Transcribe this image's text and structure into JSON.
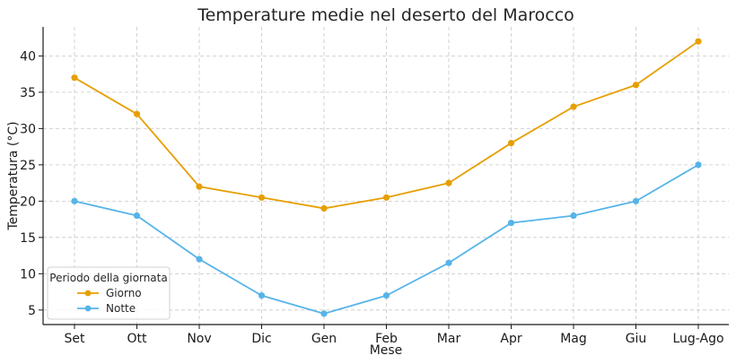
{
  "chart_data": {
    "type": "line",
    "title": "Temperature medie nel deserto del Marocco",
    "xlabel": "Mese",
    "ylabel": "Temperatura (°C)",
    "categories": [
      "Set",
      "Ott",
      "Nov",
      "Dic",
      "Gen",
      "Feb",
      "Mar",
      "Apr",
      "Mag",
      "Giu",
      "Lug-Ago"
    ],
    "ylim": [
      3,
      44
    ],
    "yticks": [
      5,
      10,
      15,
      20,
      25,
      30,
      35,
      40
    ],
    "grid": true,
    "legend": {
      "title": "Periodo della giornata",
      "placement": "lower-left"
    },
    "series": [
      {
        "name": "Giorno",
        "color": "#e69f00",
        "values": [
          37,
          32,
          22,
          20.5,
          19,
          20.5,
          22.5,
          28,
          33,
          36,
          42
        ]
      },
      {
        "name": "Notte",
        "color": "#56b4e9",
        "values": [
          20,
          18,
          12,
          7,
          4.5,
          7,
          11.5,
          17,
          18,
          20,
          25
        ]
      }
    ]
  }
}
